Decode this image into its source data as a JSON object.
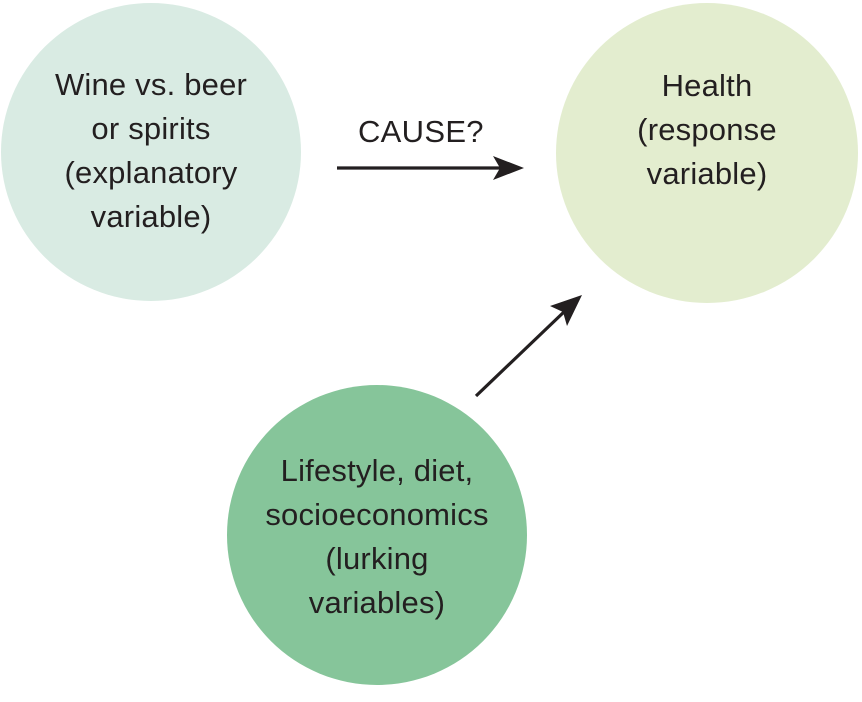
{
  "diagram": {
    "nodes": {
      "explanatory": {
        "lines": [
          "Wine vs. beer",
          "or spirits",
          "(explanatory",
          "variable)"
        ],
        "color": "#d9ebe3"
      },
      "response": {
        "lines": [
          "Health",
          "(response",
          "variable)"
        ],
        "color": "#e3edcf"
      },
      "lurking": {
        "lines": [
          "Lifestyle, diet,",
          "socioeconomics",
          "(lurking",
          "variables)"
        ],
        "color": "#86c59a"
      }
    },
    "edges": [
      {
        "from": "explanatory",
        "to": "response",
        "label": "CAUSE?"
      },
      {
        "from": "lurking",
        "to": "response",
        "label": ""
      }
    ],
    "arrow_color": "#231f20"
  }
}
